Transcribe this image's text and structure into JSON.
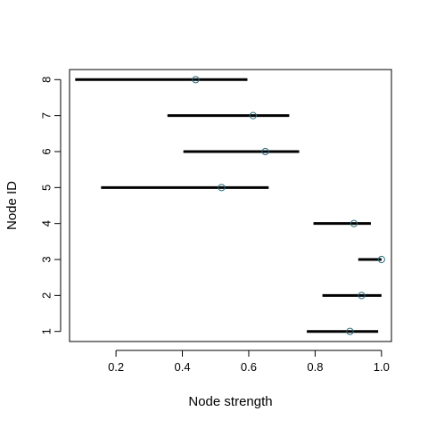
{
  "chart_data": {
    "type": "scatter",
    "title": "",
    "xlabel": "Node strength",
    "ylabel": "Node ID",
    "xlim": [
      0.06,
      1.03
    ],
    "ylim": [
      0.72,
      8.28
    ],
    "xticks": [
      0.2,
      0.4,
      0.6,
      0.8,
      1.0
    ],
    "xtick_labels": [
      "0.2",
      "0.4",
      "0.6",
      "0.8",
      "1.0"
    ],
    "yticks": [
      1,
      2,
      3,
      4,
      5,
      6,
      7,
      8
    ],
    "ytick_labels": [
      "1",
      "2",
      "3",
      "4",
      "5",
      "6",
      "7",
      "8"
    ],
    "grid": false,
    "colors": {
      "interval": "#000000",
      "point": "#2e6e7e",
      "frame": "#000000"
    },
    "series": [
      {
        "points": [
          {
            "id": 1,
            "estimate": 0.905,
            "lower": 0.775,
            "upper": 0.99
          },
          {
            "id": 2,
            "estimate": 0.94,
            "lower": 0.822,
            "upper": 1.0
          },
          {
            "id": 3,
            "estimate": 1.0,
            "lower": 0.93,
            "upper": 1.0
          },
          {
            "id": 4,
            "estimate": 0.917,
            "lower": 0.795,
            "upper": 0.968
          },
          {
            "id": 5,
            "estimate": 0.518,
            "lower": 0.155,
            "upper": 0.66
          },
          {
            "id": 6,
            "estimate": 0.65,
            "lower": 0.403,
            "upper": 0.752
          },
          {
            "id": 7,
            "estimate": 0.613,
            "lower": 0.355,
            "upper": 0.722
          },
          {
            "id": 8,
            "estimate": 0.44,
            "lower": 0.077,
            "upper": 0.596
          }
        ]
      }
    ]
  }
}
